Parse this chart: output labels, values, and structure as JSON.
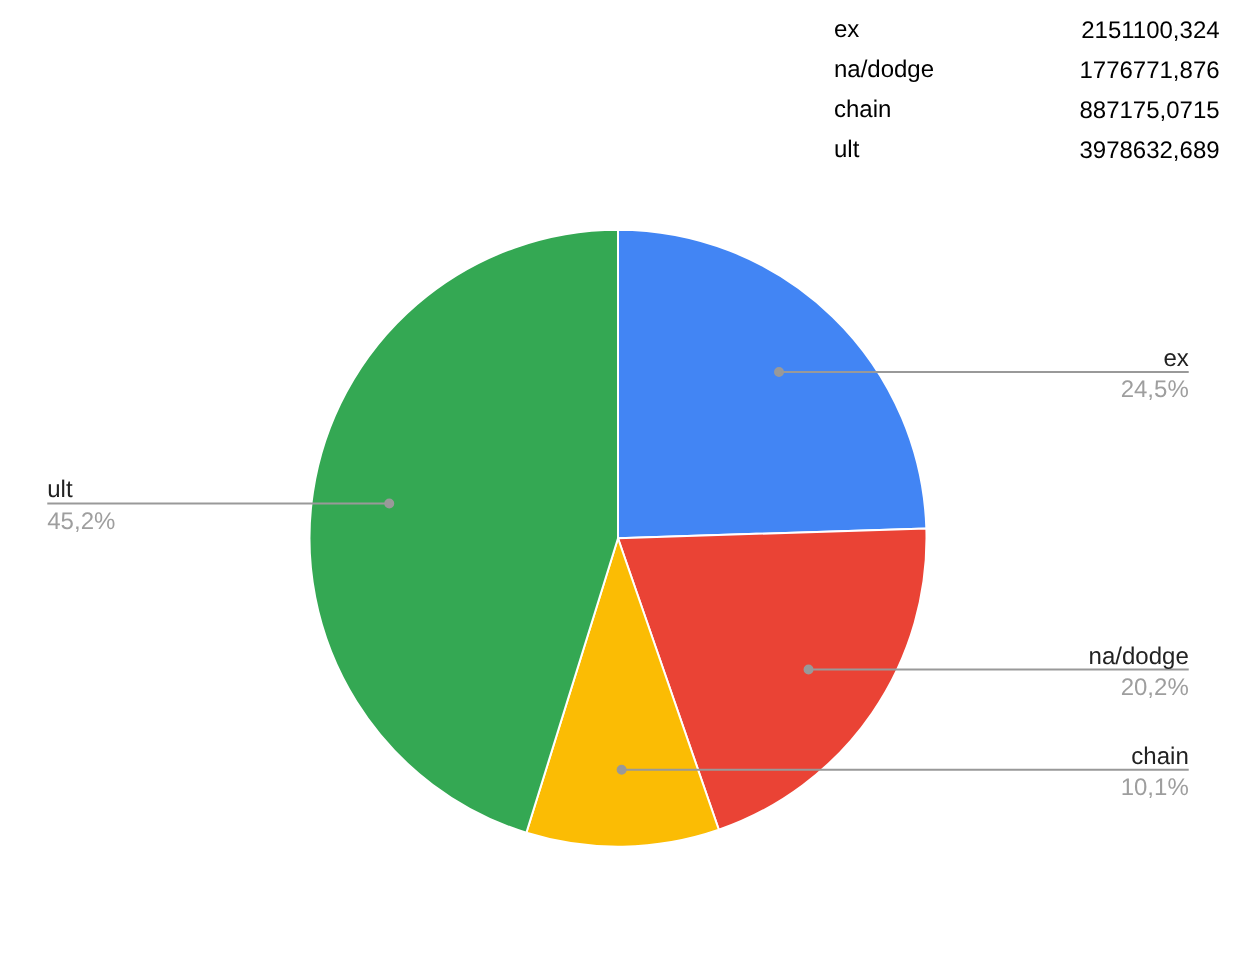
{
  "chart_data": {
    "type": "pie",
    "categories": [
      "ex",
      "na/dodge",
      "chain",
      "ult"
    ],
    "values": [
      24.5,
      20.2,
      10.1,
      45.2
    ],
    "value_labels": [
      "24,5%",
      "20,2%",
      "10,1%",
      "45,2%"
    ],
    "colors": [
      "#4285f4",
      "#ea4335",
      "#fbbc04",
      "#34a853"
    ],
    "annotations": [
      "ex",
      "2151100,324",
      "na/dodge",
      "1776771,876",
      "chain",
      "887175,0715",
      "ult",
      "3978632,689"
    ]
  }
}
